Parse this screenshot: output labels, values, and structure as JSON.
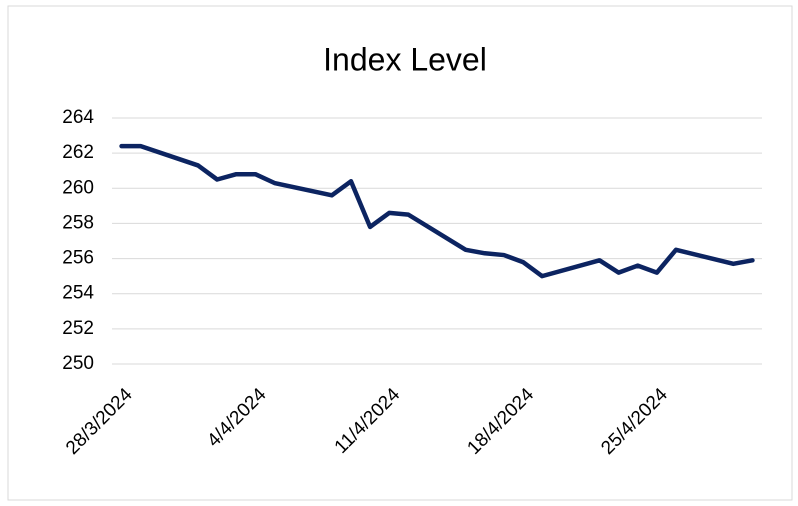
{
  "chart_data": {
    "type": "line",
    "title": "Index Level",
    "x": [
      "28/3/2024",
      "29/3/2024",
      "1/4/2024",
      "2/4/2024",
      "3/4/2024",
      "4/4/2024",
      "5/4/2024",
      "8/4/2024",
      "9/4/2024",
      "10/4/2024",
      "11/4/2024",
      "12/4/2024",
      "15/4/2024",
      "16/4/2024",
      "17/4/2024",
      "18/4/2024",
      "19/4/2024",
      "22/4/2024",
      "23/4/2024",
      "24/4/2024",
      "25/4/2024",
      "26/4/2024",
      "29/4/2024",
      "30/4/2024"
    ],
    "series": [
      {
        "name": "Index Level",
        "color": "#0c2461",
        "values": [
          262.4,
          262.4,
          261.3,
          260.5,
          260.8,
          260.8,
          260.3,
          259.6,
          260.4,
          257.8,
          258.6,
          258.5,
          256.5,
          256.3,
          256.2,
          255.8,
          255.0,
          255.9,
          255.2,
          255.6,
          255.2,
          256.5,
          255.7,
          255.9
        ]
      }
    ],
    "xlim": [
      "28/3/2024",
      "30/4/2024"
    ],
    "xticks": [
      "28/3/2024",
      "4/4/2024",
      "11/4/2024",
      "18/4/2024",
      "25/4/2024"
    ],
    "ylim": [
      250,
      264
    ],
    "yticks": [
      250,
      252,
      254,
      256,
      258,
      260,
      262,
      264
    ],
    "grid": true
  }
}
